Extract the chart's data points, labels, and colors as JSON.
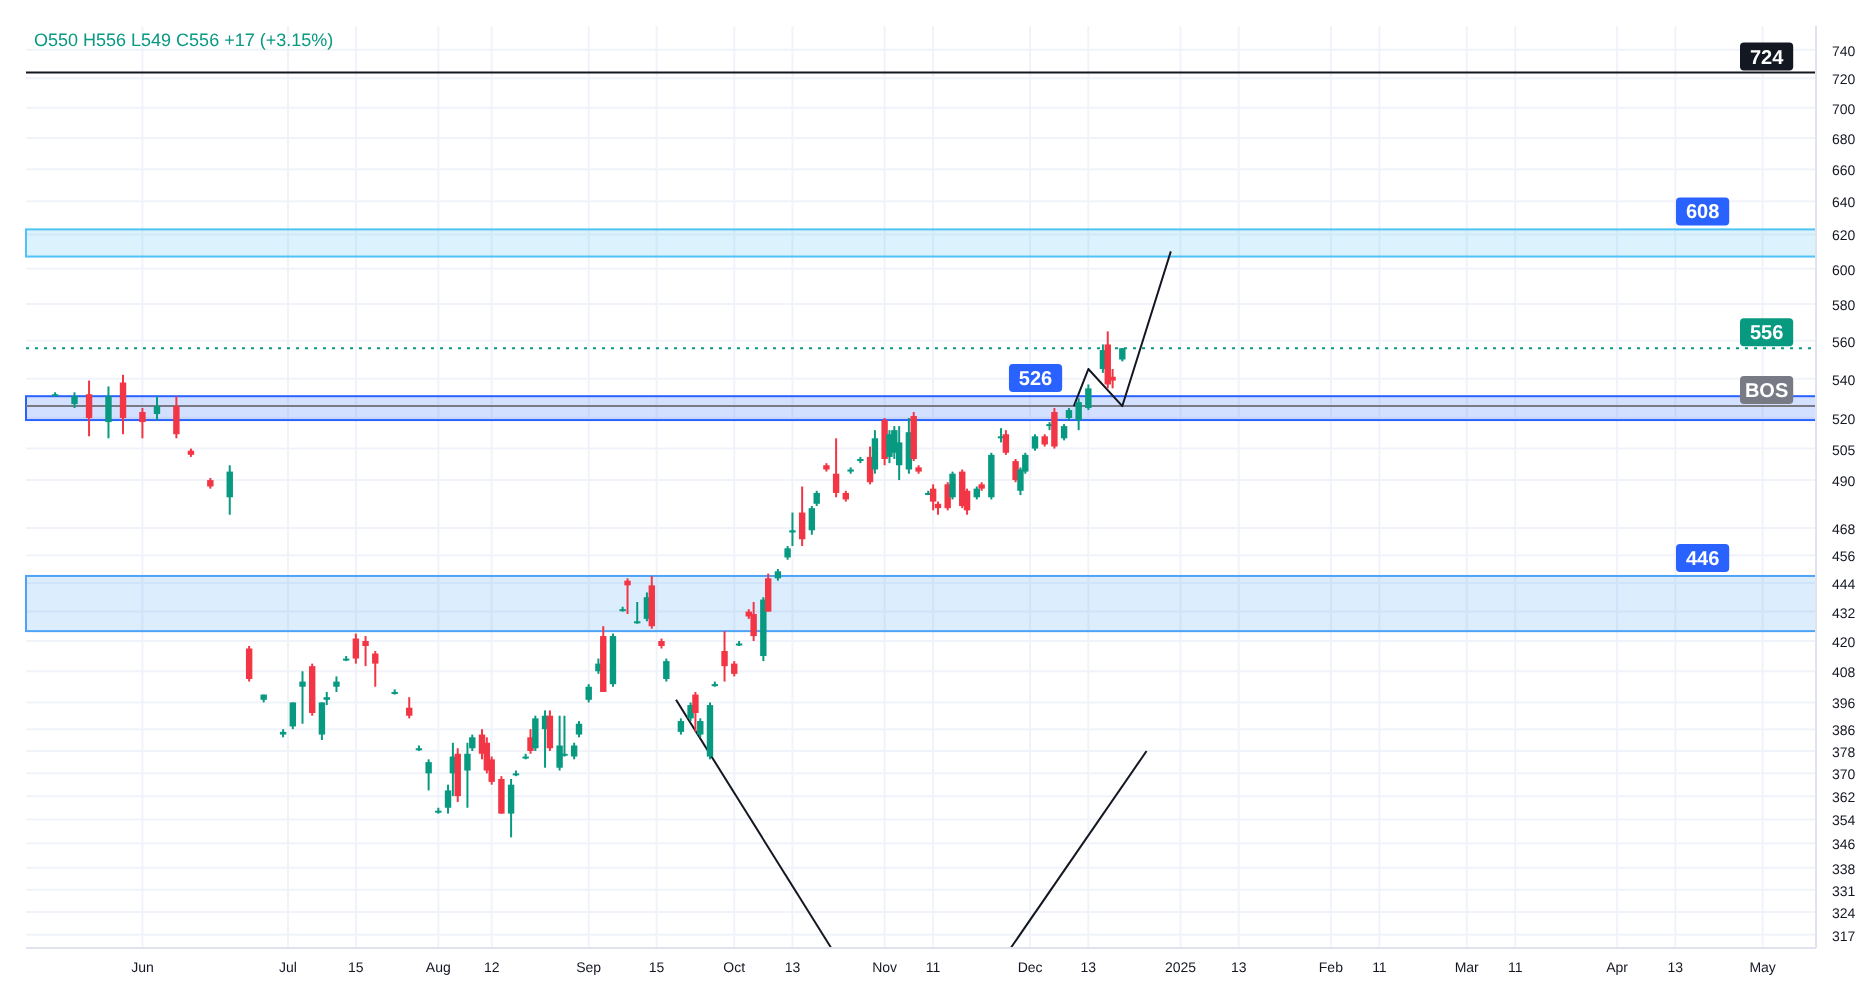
{
  "chart_data": {
    "type": "candlestick",
    "annotations": [
      "O550 H556 L549 C556 +17 (+3.15%)",
      {
        "text": "526",
        "x": "2024-12-09",
        "y": 526
      }
    ],
    "x": [
      "2024-05-14",
      "2024-05-18",
      "2024-05-21",
      "2024-05-25",
      "2024-05-28",
      "2024-06-01",
      "2024-06-04",
      "2024-06-08",
      "2024-06-11",
      "2024-06-15",
      "2024-06-19",
      "2024-06-23",
      "2024-06-26",
      "2024-06-30",
      "2024-07-02",
      "2024-07-04",
      "2024-07-06",
      "2024-07-08",
      "2024-07-09",
      "2024-07-11",
      "2024-07-13",
      "2024-07-15",
      "2024-07-17",
      "2024-07-19",
      "2024-07-23",
      "2024-07-26",
      "2024-07-28",
      "2024-07-30",
      "2024-08-01",
      "2024-08-03",
      "2024-08-04",
      "2024-08-05",
      "2024-08-07",
      "2024-08-08",
      "2024-08-10",
      "2024-08-11",
      "2024-08-12",
      "2024-08-14",
      "2024-08-16",
      "2024-08-17",
      "2024-08-19",
      "2024-08-20",
      "2024-08-21",
      "2024-08-23",
      "2024-08-24",
      "2024-08-26",
      "2024-08-27",
      "2024-08-29",
      "2024-08-30",
      "2024-09-01",
      "2024-09-03",
      "2024-09-04",
      "2024-09-06",
      "2024-09-08",
      "2024-09-09",
      "2024-09-11",
      "2024-09-13",
      "2024-09-14",
      "2024-09-16",
      "2024-09-17",
      "2024-09-20",
      "2024-09-22",
      "2024-09-23",
      "2024-09-24",
      "2024-09-26",
      "2024-09-27",
      "2024-09-29",
      "2024-10-01",
      "2024-10-02",
      "2024-10-04",
      "2024-10-05",
      "2024-10-07",
      "2024-10-08",
      "2024-10-10",
      "2024-10-12",
      "2024-10-13",
      "2024-10-15",
      "2024-10-17",
      "2024-10-18",
      "2024-10-20",
      "2024-10-22",
      "2024-10-24",
      "2024-10-25",
      "2024-10-27",
      "2024-10-29",
      "2024-10-30",
      "2024-11-01",
      "2024-11-02",
      "2024-11-03",
      "2024-11-04",
      "2024-11-06",
      "2024-11-07",
      "2024-11-08",
      "2024-11-10",
      "2024-11-11",
      "2024-11-12",
      "2024-11-14",
      "2024-11-15",
      "2024-11-17",
      "2024-11-18",
      "2024-11-20",
      "2024-11-21",
      "2024-11-23",
      "2024-11-25",
      "2024-11-26",
      "2024-11-28",
      "2024-11-29",
      "2024-11-30",
      "2024-12-02",
      "2024-12-04",
      "2024-12-05",
      "2024-12-06",
      "2024-12-08",
      "2024-12-09",
      "2024-12-11",
      "2024-12-13",
      "2024-12-16",
      "2024-12-17",
      "2024-12-18",
      "2024-12-20"
    ],
    "ohlc": [
      [
        532,
        533,
        531,
        532
      ],
      [
        527,
        533,
        525,
        531
      ],
      [
        532,
        539,
        511,
        520
      ],
      [
        518,
        536,
        510,
        531
      ],
      [
        538,
        542,
        512,
        520
      ],
      [
        523,
        525,
        510,
        518
      ],
      [
        522,
        531,
        519,
        526
      ],
      [
        526,
        531,
        510,
        512
      ],
      [
        504,
        505,
        501,
        502
      ],
      [
        490,
        491,
        486,
        487
      ],
      [
        482,
        497,
        474,
        494
      ],
      [
        417,
        418,
        404,
        405
      ],
      [
        397,
        399,
        396,
        399
      ],
      [
        384,
        386,
        383,
        385
      ],
      [
        387,
        396,
        386,
        396
      ],
      [
        402,
        408,
        388,
        404
      ],
      [
        410,
        411,
        391,
        392
      ],
      [
        384,
        396,
        382,
        396
      ],
      [
        397,
        400,
        395,
        398
      ],
      [
        402,
        406,
        400,
        404
      ],
      [
        413,
        414,
        412,
        413
      ],
      [
        421,
        423,
        411,
        413
      ],
      [
        420,
        422,
        410,
        418
      ],
      [
        415,
        416,
        402,
        411
      ],
      [
        400,
        401,
        399,
        400
      ],
      [
        394,
        398,
        390,
        391
      ],
      [
        379,
        380,
        378,
        379
      ],
      [
        370,
        375,
        364,
        374
      ],
      [
        357,
        358,
        356,
        357
      ],
      [
        358,
        366,
        356,
        364
      ],
      [
        370,
        381,
        362,
        376
      ],
      [
        377,
        379,
        360,
        362
      ],
      [
        371,
        381,
        358,
        377
      ],
      [
        379,
        384,
        378,
        383
      ],
      [
        384,
        386,
        375,
        377
      ],
      [
        381,
        383,
        370,
        371
      ],
      [
        375,
        376,
        366,
        367
      ],
      [
        368,
        369,
        356,
        356
      ],
      [
        356,
        368,
        348,
        366
      ],
      [
        370,
        371,
        369,
        370
      ],
      [
        376,
        377,
        375,
        376
      ],
      [
        383,
        386,
        377,
        378
      ],
      [
        379,
        391,
        378,
        390
      ],
      [
        386,
        393,
        372,
        391
      ],
      [
        391,
        393,
        378,
        379
      ],
      [
        372,
        391,
        371,
        380
      ],
      [
        377,
        391,
        376,
        377
      ],
      [
        376,
        381,
        375,
        380
      ],
      [
        384,
        389,
        383,
        388
      ],
      [
        397,
        403,
        396,
        402
      ],
      [
        408,
        413,
        407,
        411
      ],
      [
        422,
        426,
        400,
        400
      ],
      [
        403,
        423,
        402,
        422
      ],
      [
        433,
        434,
        432,
        433
      ],
      [
        445,
        446,
        431,
        443
      ],
      [
        428,
        436,
        427,
        428
      ],
      [
        429,
        440,
        428,
        438
      ],
      [
        443,
        447,
        425,
        426
      ],
      [
        420,
        421,
        417,
        418
      ],
      [
        405,
        413,
        404,
        412
      ],
      [
        385,
        390,
        384,
        389
      ],
      [
        390,
        396,
        389,
        395
      ],
      [
        399,
        400,
        385,
        392
      ],
      [
        384,
        390,
        383,
        389
      ],
      [
        376,
        396,
        375,
        395
      ],
      [
        403,
        404,
        402,
        403
      ],
      [
        416,
        424,
        404,
        410
      ],
      [
        411,
        412,
        406,
        407
      ],
      [
        419,
        420,
        418,
        419
      ],
      [
        432,
        433,
        429,
        430
      ],
      [
        431,
        436,
        420,
        422
      ],
      [
        414,
        438,
        412,
        437
      ],
      [
        446,
        448,
        432,
        432
      ],
      [
        446,
        450,
        445,
        449
      ],
      [
        455,
        460,
        454,
        459
      ],
      [
        466,
        475,
        460,
        467
      ],
      [
        475,
        487,
        460,
        463
      ],
      [
        467,
        478,
        465,
        477
      ],
      [
        479,
        485,
        478,
        484
      ],
      [
        497,
        498,
        494,
        495
      ],
      [
        493,
        510,
        482,
        484
      ],
      [
        484,
        485,
        480,
        481
      ],
      [
        494,
        496,
        493,
        495
      ],
      [
        499,
        501,
        498,
        500
      ],
      [
        501,
        506,
        488,
        489
      ],
      [
        495,
        514,
        493,
        510
      ],
      [
        519,
        520,
        497,
        500
      ],
      [
        501,
        514,
        498,
        512
      ],
      [
        503,
        516,
        500,
        514
      ],
      [
        497,
        516,
        490,
        508
      ],
      [
        495,
        520,
        493,
        513
      ],
      [
        521,
        523,
        499,
        500
      ],
      [
        496,
        497,
        493,
        494
      ],
      [
        484,
        485,
        483,
        484
      ],
      [
        486,
        488,
        476,
        480
      ],
      [
        479,
        480,
        474,
        477
      ],
      [
        488,
        489,
        476,
        477
      ],
      [
        482,
        494,
        481,
        493
      ],
      [
        494,
        495,
        477,
        478
      ],
      [
        485,
        486,
        474,
        476
      ],
      [
        482,
        487,
        481,
        486
      ],
      [
        488,
        489,
        485,
        486
      ],
      [
        482,
        503,
        481,
        502
      ],
      [
        510,
        515,
        508,
        511
      ],
      [
        512,
        514,
        502,
        503
      ],
      [
        499,
        500,
        489,
        490
      ],
      [
        485,
        496,
        483,
        495
      ],
      [
        494,
        503,
        493,
        502
      ],
      [
        505,
        512,
        504,
        511
      ],
      [
        511,
        512,
        506,
        507
      ],
      [
        516,
        518,
        514,
        517
      ],
      [
        523,
        525,
        505,
        506
      ],
      [
        510,
        517,
        509,
        516
      ],
      [
        520,
        525,
        519,
        524
      ],
      [
        519,
        530,
        514,
        528
      ],
      [
        525,
        537,
        524,
        535
      ],
      [
        545,
        558,
        543,
        555
      ],
      [
        558,
        565,
        535,
        537
      ],
      [
        541,
        545,
        535,
        539
      ],
      [
        550,
        556,
        549,
        556
      ]
    ],
    "colors": [
      "#089981",
      "#089981",
      "#f23645",
      "#089981",
      "#f23645",
      "#f23645",
      "#089981",
      "#f23645",
      "#f23645",
      "#f23645",
      "#089981",
      "#f23645",
      "#089981",
      "#089981",
      "#089981",
      "#089981",
      "#f23645",
      "#089981",
      "#089981",
      "#089981",
      "#089981",
      "#f23645",
      "#f23645",
      "#f23645",
      "#089981",
      "#f23645",
      "#089981",
      "#089981",
      "#089981",
      "#089981",
      "#089981",
      "#f23645",
      "#089981",
      "#089981",
      "#f23645",
      "#f23645",
      "#f23645",
      "#f23645",
      "#089981",
      "#089981",
      "#089981",
      "#f23645",
      "#089981",
      "#089981",
      "#f23645",
      "#089981",
      "#089981",
      "#089981",
      "#089981",
      "#089981",
      "#089981",
      "#f23645",
      "#089981",
      "#089981",
      "#f23645",
      "#089981",
      "#089981",
      "#f23645",
      "#f23645",
      "#089981",
      "#089981",
      "#089981",
      "#f23645",
      "#089981",
      "#089981",
      "#089981",
      "#f23645",
      "#f23645",
      "#089981",
      "#f23645",
      "#f23645",
      "#089981",
      "#f23645",
      "#089981",
      "#089981",
      "#089981",
      "#f23645",
      "#089981",
      "#089981",
      "#f23645",
      "#f23645",
      "#f23645",
      "#089981",
      "#089981",
      "#f23645",
      "#089981",
      "#f23645",
      "#089981",
      "#089981",
      "#089981",
      "#089981",
      "#f23645",
      "#f23645",
      "#089981",
      "#f23645",
      "#f23645",
      "#f23645",
      "#089981",
      "#f23645",
      "#f23645",
      "#089981",
      "#f23645",
      "#089981",
      "#089981",
      "#f23645",
      "#f23645",
      "#089981",
      "#089981",
      "#089981",
      "#f23645",
      "#089981",
      "#f23645",
      "#089981",
      "#089981",
      "#089981",
      "#089981",
      "#089981",
      "#f23645",
      "#f23645",
      "#089981"
    ],
    "series": [
      {
        "type": "line",
        "color": "#131722",
        "x": [
          "2024-12-10",
          "2024-12-13",
          "2024-12-20",
          "2024-12-30"
        ],
        "values": [
          526,
          545,
          526,
          610
        ]
      },
      {
        "type": "line",
        "color": "#131722",
        "x": [
          "2024-09-19",
          "2024-10-21"
        ],
        "values": [
          397,
          313
        ]
      },
      {
        "type": "line",
        "color": "#131722",
        "x": [
          "2024-11-27",
          "2024-12-25"
        ],
        "values": [
          313,
          378
        ]
      }
    ],
    "bands": [
      {
        "axis": "y",
        "from": 519,
        "to": 531,
        "color": "#2962ff"
      },
      {
        "axis": "y",
        "from": 424,
        "to": 447,
        "label": "446",
        "color": "#4fa3f7"
      },
      {
        "axis": "y",
        "from": 607,
        "to": 623,
        "label": "608",
        "color": "#4fc3f7"
      }
    ],
    "ref_lines": [
      {
        "axis": "y",
        "value": 724,
        "label": "724",
        "color": "#131722",
        "line_style": "solid"
      },
      {
        "axis": "y",
        "value": 526,
        "label": "BOS",
        "color": "#787b86",
        "line_style": "solid"
      },
      {
        "axis": "y",
        "value": 556,
        "label": "556",
        "color": "#089981",
        "line_style": "dotted"
      }
    ],
    "xlim": [
      "2024-05-08",
      "2025-05-12"
    ],
    "xticks": [
      {
        "value": "2024-06-01",
        "label": "Jun"
      },
      {
        "value": "2024-07-01",
        "label": "Jul"
      },
      {
        "value": "2024-07-15",
        "label": "15"
      },
      {
        "value": "2024-08-01",
        "label": "Aug"
      },
      {
        "value": "2024-08-12",
        "label": "12"
      },
      {
        "value": "2024-09-01",
        "label": "Sep"
      },
      {
        "value": "2024-09-15",
        "label": "15"
      },
      {
        "value": "2024-10-01",
        "label": "Oct"
      },
      {
        "value": "2024-10-13",
        "label": "13"
      },
      {
        "value": "2024-11-01",
        "label": "Nov"
      },
      {
        "value": "2024-11-11",
        "label": "11"
      },
      {
        "value": "2024-12-01",
        "label": "Dec"
      },
      {
        "value": "2024-12-13",
        "label": "13"
      },
      {
        "value": "2025-01-01",
        "label": "2025"
      },
      {
        "value": "2025-01-13",
        "label": "13"
      },
      {
        "value": "2025-02-01",
        "label": "Feb"
      },
      {
        "value": "2025-02-11",
        "label": "11"
      },
      {
        "value": "2025-03-01",
        "label": "Mar"
      },
      {
        "value": "2025-03-11",
        "label": "11"
      },
      {
        "value": "2025-04-01",
        "label": "Apr"
      },
      {
        "value": "2025-04-13",
        "label": "13"
      },
      {
        "value": "2025-05-01",
        "label": "May"
      }
    ],
    "ylim": [
      313,
      757
    ],
    "log": true,
    "yticks": [
      317,
      324,
      331,
      338,
      346,
      354,
      362,
      370,
      378,
      386,
      396,
      408,
      420,
      432,
      444,
      456,
      468,
      490,
      505,
      520,
      540,
      560,
      580,
      600,
      620,
      640,
      660,
      680,
      700,
      720,
      740
    ],
    "grid": true
  }
}
